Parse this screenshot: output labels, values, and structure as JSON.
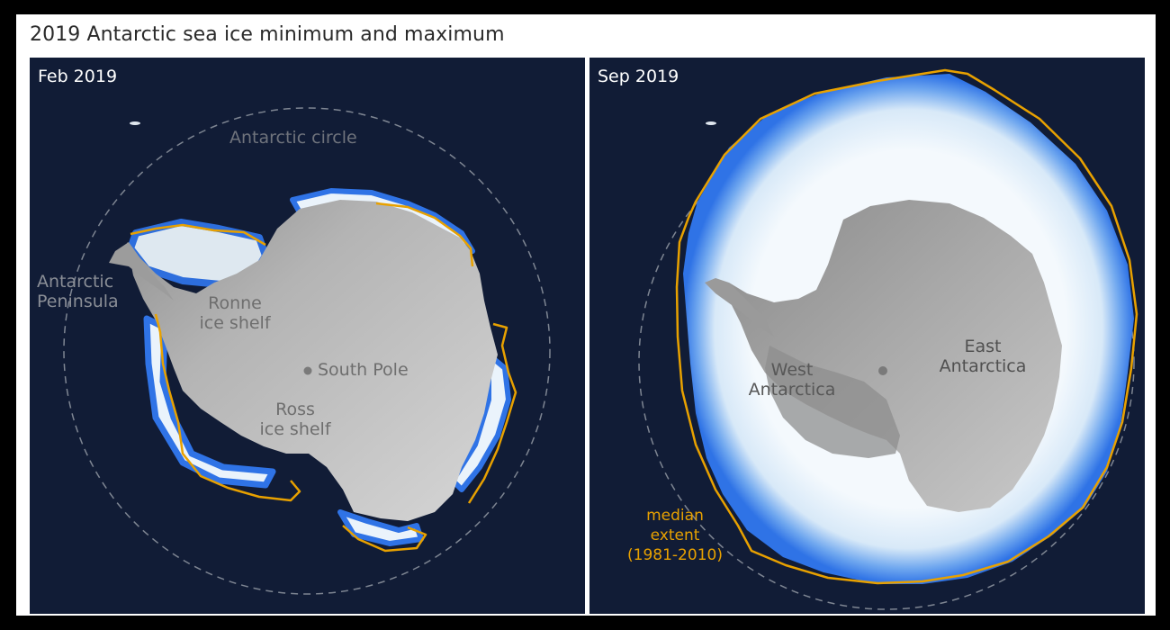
{
  "title": "2019 Antarctic sea ice minimum and maximum",
  "colors": {
    "background": "#111c36",
    "sea_ice": "#eaf3fb",
    "sea_ice_edge": "#2f73e6",
    "land": "#a9a9a9",
    "median_extent_line": "#e8a100",
    "antarctic_circle": "#9aa0aa"
  },
  "panels": [
    {
      "label": "Feb 2019",
      "annotations": {
        "antarctic_circle": "Antarctic circle",
        "antarctic_peninsula": [
          "Antarctic",
          "Peninsula"
        ],
        "ronne": [
          "Ronne",
          "ice shelf"
        ],
        "south_pole": "South Pole",
        "ross": [
          "Ross",
          "ice shelf"
        ]
      }
    },
    {
      "label": "Sep 2019",
      "annotations": {
        "west_antarctica": [
          "West",
          "Antarctica"
        ],
        "east_antarctica": [
          "East",
          "Antarctica"
        ],
        "median_extent": [
          "median",
          "extent",
          "(1981-2010)"
        ]
      }
    }
  ]
}
